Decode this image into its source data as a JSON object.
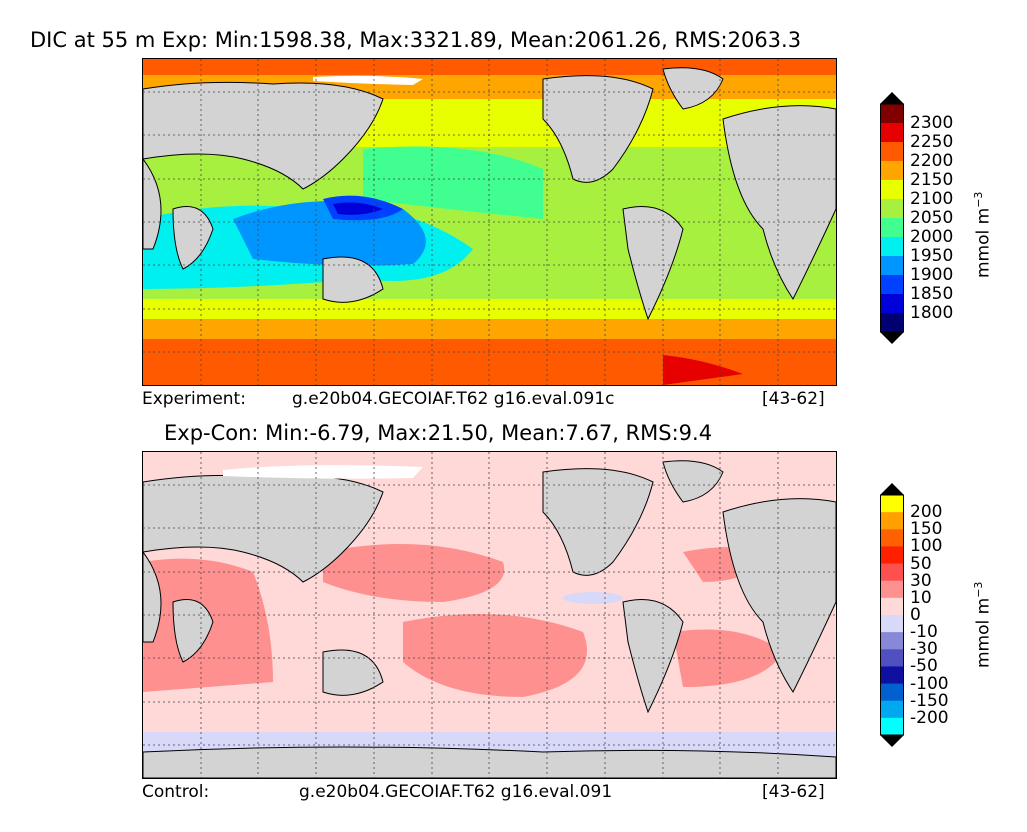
{
  "panel_top": {
    "title": "DIC at 55 m Exp: Min:1598.38, Max:3321.89, Mean:2061.26, RMS:2063.3",
    "caption_left": "Experiment:",
    "caption_case": "g.e20b04.GECOIAF.T62 g16.eval.091c",
    "caption_years": "[43-62]",
    "colorbar": {
      "units": "mmol m",
      "units_exp": "−3",
      "labels": [
        "2300",
        "2250",
        "2200",
        "2150",
        "2100",
        "2050",
        "2000",
        "1950",
        "1900",
        "1850",
        "1800"
      ],
      "colors": [
        "#800000",
        "#e60000",
        "#ff5a00",
        "#ffa500",
        "#e8ff00",
        "#a8f040",
        "#40ff90",
        "#00f0f0",
        "#0096ff",
        "#0040ff",
        "#0000d8",
        "#000070"
      ],
      "over_color": "#000000",
      "under_color": "#000000"
    }
  },
  "panel_bottom": {
    "title": "Exp-Con: Min:-6.79, Max:21.50, Mean:7.67, RMS:9.4",
    "caption_left": "Control:",
    "caption_case": "g.e20b04.GECOIAF.T62 g16.eval.091",
    "caption_years": "[43-62]",
    "colorbar": {
      "units": "mmol m",
      "units_exp": "−3",
      "labels": [
        "200",
        "150",
        "100",
        "50",
        "30",
        "10",
        "0",
        "-10",
        "-30",
        "-50",
        "-100",
        "-150",
        "-200"
      ],
      "colors": [
        "#ffff00",
        "#ffa000",
        "#ff6000",
        "#ff2000",
        "#ff5050",
        "#ff9090",
        "#ffd8d8",
        "#d8d8f8",
        "#8888d8",
        "#5050c0",
        "#1010a0",
        "#0060d0",
        "#00a8f0",
        "#00ffff"
      ],
      "over_color": "#000000",
      "under_color": "#000000"
    }
  },
  "colors": {
    "land": "#d3d3d3",
    "sea_ice": "#ffffff",
    "grid": "#444444"
  }
}
